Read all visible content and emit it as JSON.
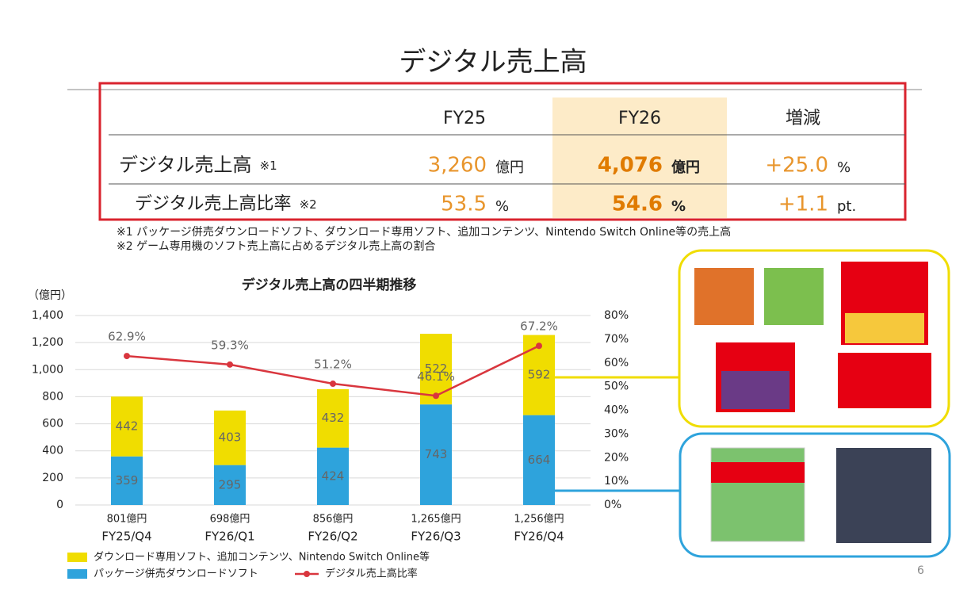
{
  "title": "デジタル売上高",
  "table": {
    "columns": [
      "FY25",
      "FY26",
      "増減"
    ],
    "rows": [
      {
        "label": "デジタル売上高",
        "note": "※1",
        "cells": [
          {
            "value": "3,260",
            "unit": "億円"
          },
          {
            "value": "4,076",
            "unit": "億円"
          },
          {
            "value": "+25.0",
            "unit": "%"
          }
        ]
      },
      {
        "label": "デジタル売上高比率",
        "note": "※2",
        "cells": [
          {
            "value": "53.5",
            "unit": "%"
          },
          {
            "value": "54.6",
            "unit": "%"
          },
          {
            "value": "+1.1",
            "unit": "pt."
          }
        ]
      }
    ]
  },
  "notes": [
    "※1 パッケージ併売ダウンロードソフト、ダウンロード専用ソフト、追加コンテンツ、Nintendo Switch Online等の売上高",
    "※2 ゲーム専用機のソフト売上高に占めるデジタル売上高の割合"
  ],
  "chart_data": {
    "type": "combo",
    "title": "デジタル売上高の四半期推移",
    "y_label": "（億円）",
    "categories": [
      "FY25/Q4",
      "FY26/Q1",
      "FY26/Q2",
      "FY26/Q3",
      "FY26/Q4"
    ],
    "total_labels": [
      "801億円",
      "698億円",
      "856億円",
      "1,265億円",
      "1,256億円"
    ],
    "series": [
      {
        "name": "ダウンロード専用ソフト、追加コンテンツ、Nintendo Switch Online等",
        "color": "#f0dd00",
        "values": [
          442,
          403,
          432,
          522,
          592
        ]
      },
      {
        "name": "パッケージ併売ダウンロードソフト",
        "color": "#2ea3dc",
        "values": [
          359,
          295,
          424,
          743,
          664
        ]
      },
      {
        "name": "デジタル売上高比率",
        "color": "#d9363e",
        "type": "line",
        "axis": "y2",
        "values": [
          62.9,
          59.3,
          51.2,
          46.1,
          67.2
        ],
        "value_labels": [
          "62.9%",
          "59.3%",
          "51.2%",
          "46.1%",
          "67.2%"
        ]
      }
    ],
    "ylim": [
      0,
      1400
    ],
    "yticks": [
      0,
      200,
      400,
      600,
      800,
      {
        "value": 1000,
        "label": "1,000"
      },
      {
        "value": 1200,
        "label": "1,200"
      },
      {
        "value": 1400,
        "label": "1,400"
      }
    ],
    "y2lim": [
      0,
      80
    ],
    "y2ticks": [
      {
        "value": 0,
        "label": "0%"
      },
      {
        "value": 10,
        "label": "10%"
      },
      {
        "value": 20,
        "label": "20%"
      },
      {
        "value": 30,
        "label": "30%"
      },
      {
        "value": 40,
        "label": "40%"
      },
      {
        "value": 50,
        "label": "50%"
      },
      {
        "value": 60,
        "label": "60%"
      },
      {
        "value": 70,
        "label": "70%"
      },
      {
        "value": 80,
        "label": "80%"
      }
    ],
    "grid": true
  },
  "page_number": "6"
}
